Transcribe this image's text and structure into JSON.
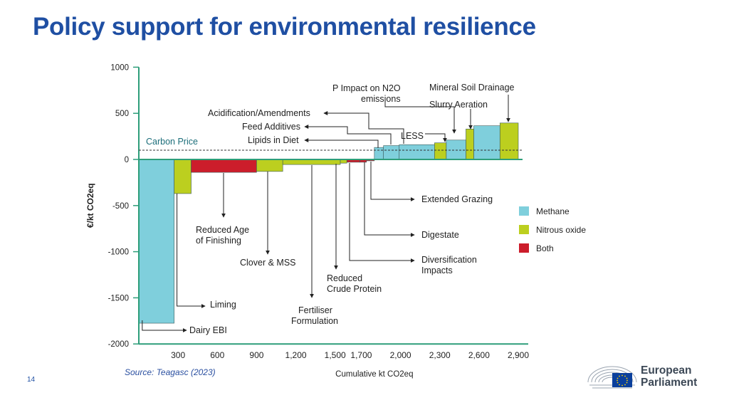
{
  "slide": {
    "title": "Policy support for environmental resilience",
    "source": "Source: Teagasc (2023)",
    "page_number": "14",
    "logo_text_line1": "European",
    "logo_text_line2": "Parliament"
  },
  "colors": {
    "title": "#1f4fa3",
    "methane": "#7fcfdc",
    "nitrous_oxide": "#bccf1f",
    "both": "#cc1d2b",
    "axis": "#2e9e7a",
    "text": "#222222"
  },
  "chart_data": {
    "type": "bar",
    "subtype": "marginal-abatement-cost-curve",
    "xlabel": "Cumulative kt CO2eq",
    "ylabel": "€/kt CO2eq",
    "xlim": [
      0,
      2900
    ],
    "ylim": [
      -2000,
      1000
    ],
    "x_ticks": [
      300,
      600,
      900,
      1200,
      1500,
      1700,
      2000,
      2300,
      2600,
      2900
    ],
    "x_tick_labels": [
      "300",
      "600",
      "900",
      "1,200",
      "1,500",
      "1,700",
      "2,000",
      "2,300",
      "2,600",
      "2,900"
    ],
    "y_ticks": [
      1000,
      500,
      0,
      -500,
      -1000,
      -1500,
      -2000
    ],
    "y_tick_labels": [
      "1000",
      "500",
      "0",
      "-500",
      "-1000",
      "-1500",
      "-2000"
    ],
    "carbon_price": {
      "label": "Carbon Price",
      "value": 100
    },
    "legend": {
      "placement": "right",
      "entries": [
        {
          "key": "methane",
          "label": "Methane"
        },
        {
          "key": "nitrous_oxide",
          "label": "Nitrous oxide"
        },
        {
          "key": "both",
          "label": "Both"
        }
      ]
    },
    "bars": [
      {
        "x0": 0,
        "x1": 270,
        "value": -1775,
        "gas": "methane",
        "label": "Dairy EBI"
      },
      {
        "x0": 270,
        "x1": 400,
        "value": -370,
        "gas": "nitrous_oxide",
        "label": "Liming"
      },
      {
        "x0": 400,
        "x1": 900,
        "value": -140,
        "gas": "both",
        "label": "Reduced Age of Finishing"
      },
      {
        "x0": 900,
        "x1": 1100,
        "value": -130,
        "gas": "nitrous_oxide",
        "label": "Clover & MSS"
      },
      {
        "x0": 1100,
        "x1": 1540,
        "value": -55,
        "gas": "nitrous_oxide",
        "label": "Fertiliser Formulation"
      },
      {
        "x0": 1540,
        "x1": 1590,
        "value": -40,
        "gas": "nitrous_oxide",
        "label": "Reduced Crude Protein"
      },
      {
        "x0": 1590,
        "x1": 1690,
        "value": -30,
        "gas": "both",
        "label": "Diversification Impacts"
      },
      {
        "x0": 1690,
        "x1": 1740,
        "value": -30,
        "gas": "both",
        "label": "Digestate"
      },
      {
        "x0": 1740,
        "x1": 1800,
        "value": -15,
        "gas": "both",
        "label": "Extended Grazing"
      },
      {
        "x0": 1800,
        "x1": 1870,
        "value": 130,
        "gas": "methane",
        "label": "Lipids in Diet"
      },
      {
        "x0": 1870,
        "x1": 1990,
        "value": 150,
        "gas": "methane",
        "label": "Feed Additives"
      },
      {
        "x0": 1990,
        "x1": 2260,
        "value": 160,
        "gas": "methane",
        "label": "Acidification/Amendments"
      },
      {
        "x0": 2260,
        "x1": 2350,
        "value": 180,
        "gas": "nitrous_oxide",
        "label": "LESS"
      },
      {
        "x0": 2350,
        "x1": 2500,
        "value": 210,
        "gas": "methane",
        "label": "P Impact on N2O emissions"
      },
      {
        "x0": 2500,
        "x1": 2560,
        "value": 330,
        "gas": "nitrous_oxide",
        "label": "Slurry Aeration"
      },
      {
        "x0": 2560,
        "x1": 2760,
        "value": 365,
        "gas": "methane",
        "label": "Mineral Soil Drainage"
      },
      {
        "x0": 2760,
        "x1": 2900,
        "value": 395,
        "gas": "nitrous_oxide",
        "label": ""
      }
    ],
    "annotations": [
      {
        "text": "Dairy EBI"
      },
      {
        "text": "Liming"
      },
      {
        "text": "Reduced Age"
      },
      {
        "text": "of Finishing"
      },
      {
        "text": "Clover & MSS"
      },
      {
        "text": "Fertiliser"
      },
      {
        "text": "Formulation"
      },
      {
        "text": "Reduced"
      },
      {
        "text": "Crude Protein"
      },
      {
        "text": "Diversification"
      },
      {
        "text": "Impacts"
      },
      {
        "text": "Digestate"
      },
      {
        "text": "Extended Grazing"
      },
      {
        "text": "Lipids in Diet"
      },
      {
        "text": "Feed Additives"
      },
      {
        "text": "Acidification/Amendments"
      },
      {
        "text": "LESS"
      },
      {
        "text": "P Impact on N2O"
      },
      {
        "text": "emissions"
      },
      {
        "text": "Slurry Aeration"
      },
      {
        "text": "Mineral Soil Drainage"
      }
    ]
  }
}
